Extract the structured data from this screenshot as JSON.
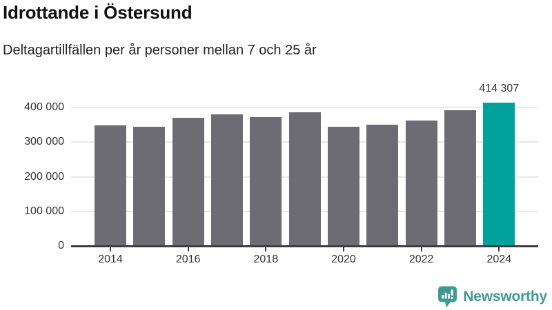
{
  "header": {
    "title": "Idrottande i Östersund",
    "subtitle": "Deltagartillfällen per år personer mellan 7 och 25 år"
  },
  "chart_data": {
    "type": "bar",
    "categories": [
      "2014",
      "2015",
      "2016",
      "2017",
      "2018",
      "2019",
      "2020",
      "2021",
      "2022",
      "2023",
      "2024"
    ],
    "values": [
      348000,
      344000,
      370000,
      380000,
      373000,
      387000,
      344000,
      351000,
      362000,
      392000,
      414307
    ],
    "highlight_category": "2024",
    "highlight_value_label": "414 307",
    "yticks": [
      {
        "value": 0,
        "label": "0"
      },
      {
        "value": 100000,
        "label": "100 000"
      },
      {
        "value": 200000,
        "label": "200 000"
      },
      {
        "value": 300000,
        "label": "300 000"
      },
      {
        "value": 400000,
        "label": "400 000"
      }
    ],
    "xtick_labels": [
      "2014",
      "2016",
      "2018",
      "2020",
      "2022",
      "2024"
    ],
    "ylim": [
      0,
      440000
    ],
    "grid": "horizontal",
    "legend": "none",
    "colors": {
      "bar": "#6c6c72",
      "highlight": "#00a29b",
      "gridline": "#e8e8e8",
      "axis": "#3d3d40",
      "tick_text": "#333333"
    }
  },
  "footer": {
    "brand": "Newsworthy",
    "brand_color": "#3f9a96"
  }
}
